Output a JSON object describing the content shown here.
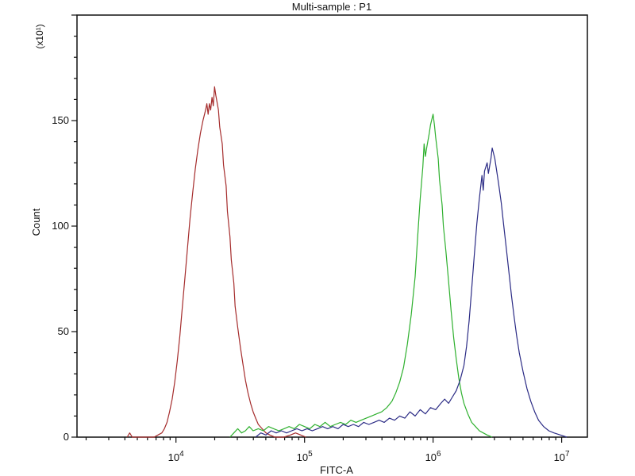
{
  "chart_data": {
    "type": "line",
    "subtype": "flow-cytometry-histogram-overlay",
    "title": "Multi-sample : P1",
    "xlabel": "FITC-A",
    "ylabel": "Count",
    "y_unit_multiplier": "(x10¹)",
    "grid": false,
    "legend": "none",
    "x_axis": {
      "scale": "log10",
      "log_min": 3.23,
      "log_max": 7.2,
      "major_exponents": [
        4,
        5,
        6,
        7
      ]
    },
    "y_axis": {
      "min": 0,
      "max": 200,
      "major_step": 50,
      "minor_step": 10,
      "major_labels": [
        "0",
        "50",
        "100",
        "150"
      ]
    },
    "series": [
      {
        "name": "red",
        "color": "#a52c2c",
        "peak_x_log10": 4.3,
        "peak_count": 166,
        "points": [
          [
            3.62,
            0
          ],
          [
            3.64,
            2
          ],
          [
            3.66,
            0
          ],
          [
            3.78,
            0
          ],
          [
            3.83,
            0
          ],
          [
            3.86,
            1
          ],
          [
            3.89,
            2
          ],
          [
            3.91,
            4
          ],
          [
            3.93,
            7
          ],
          [
            3.95,
            12
          ],
          [
            3.97,
            18
          ],
          [
            3.99,
            26
          ],
          [
            4.01,
            36
          ],
          [
            4.03,
            48
          ],
          [
            4.05,
            62
          ],
          [
            4.07,
            76
          ],
          [
            4.09,
            90
          ],
          [
            4.11,
            104
          ],
          [
            4.13,
            116
          ],
          [
            4.15,
            127
          ],
          [
            4.17,
            136
          ],
          [
            4.19,
            144
          ],
          [
            4.21,
            150
          ],
          [
            4.23,
            155
          ],
          [
            4.24,
            158
          ],
          [
            4.25,
            153
          ],
          [
            4.26,
            158
          ],
          [
            4.27,
            155
          ],
          [
            4.28,
            161
          ],
          [
            4.29,
            157
          ],
          [
            4.3,
            166
          ],
          [
            4.31,
            162
          ],
          [
            4.33,
            155
          ],
          [
            4.34,
            147
          ],
          [
            4.36,
            139
          ],
          [
            4.37,
            129
          ],
          [
            4.39,
            119
          ],
          [
            4.4,
            107
          ],
          [
            4.42,
            95
          ],
          [
            4.43,
            84
          ],
          [
            4.45,
            73
          ],
          [
            4.46,
            62
          ],
          [
            4.48,
            52
          ],
          [
            4.5,
            43
          ],
          [
            4.52,
            35
          ],
          [
            4.54,
            27
          ],
          [
            4.56,
            21
          ],
          [
            4.58,
            16
          ],
          [
            4.6,
            12
          ],
          [
            4.62,
            9
          ],
          [
            4.64,
            6
          ],
          [
            4.67,
            4
          ],
          [
            4.7,
            2
          ],
          [
            4.73,
            1
          ],
          [
            4.77,
            0
          ],
          [
            4.84,
            0
          ],
          [
            4.89,
            1
          ],
          [
            4.93,
            2
          ],
          [
            4.97,
            1
          ],
          [
            5.01,
            0
          ]
        ]
      },
      {
        "name": "green",
        "color": "#2eb02e",
        "peak_x_log10": 6.0,
        "peak_count": 153,
        "points": [
          [
            4.42,
            0
          ],
          [
            4.45,
            2
          ],
          [
            4.48,
            4
          ],
          [
            4.51,
            2
          ],
          [
            4.54,
            3
          ],
          [
            4.57,
            5
          ],
          [
            4.6,
            3
          ],
          [
            4.64,
            4
          ],
          [
            4.68,
            3
          ],
          [
            4.72,
            5
          ],
          [
            4.76,
            4
          ],
          [
            4.8,
            3
          ],
          [
            4.84,
            4
          ],
          [
            4.88,
            5
          ],
          [
            4.92,
            4
          ],
          [
            4.96,
            6
          ],
          [
            5.0,
            5
          ],
          [
            5.04,
            4
          ],
          [
            5.08,
            6
          ],
          [
            5.12,
            5
          ],
          [
            5.16,
            7
          ],
          [
            5.2,
            5
          ],
          [
            5.24,
            6
          ],
          [
            5.28,
            7
          ],
          [
            5.32,
            6
          ],
          [
            5.36,
            8
          ],
          [
            5.4,
            7
          ],
          [
            5.44,
            8
          ],
          [
            5.48,
            9
          ],
          [
            5.52,
            10
          ],
          [
            5.56,
            11
          ],
          [
            5.6,
            12
          ],
          [
            5.64,
            14
          ],
          [
            5.68,
            17
          ],
          [
            5.71,
            21
          ],
          [
            5.74,
            26
          ],
          [
            5.77,
            33
          ],
          [
            5.8,
            44
          ],
          [
            5.83,
            58
          ],
          [
            5.86,
            76
          ],
          [
            5.88,
            95
          ],
          [
            5.9,
            113
          ],
          [
            5.92,
            128
          ],
          [
            5.93,
            139
          ],
          [
            5.94,
            133
          ],
          [
            5.95,
            137
          ],
          [
            5.97,
            144
          ],
          [
            5.98,
            148
          ],
          [
            6.0,
            153
          ],
          [
            6.01,
            148
          ],
          [
            6.02,
            142
          ],
          [
            6.04,
            132
          ],
          [
            6.05,
            122
          ],
          [
            6.07,
            110
          ],
          [
            6.08,
            100
          ],
          [
            6.1,
            88
          ],
          [
            6.12,
            74
          ],
          [
            6.14,
            60
          ],
          [
            6.16,
            47
          ],
          [
            6.18,
            37
          ],
          [
            6.2,
            28
          ],
          [
            6.22,
            21
          ],
          [
            6.24,
            16
          ],
          [
            6.27,
            11
          ],
          [
            6.3,
            7
          ],
          [
            6.33,
            5
          ],
          [
            6.36,
            3
          ],
          [
            6.39,
            2
          ],
          [
            6.42,
            1
          ],
          [
            6.46,
            0
          ]
        ]
      },
      {
        "name": "blue",
        "color": "#2b2b85",
        "peak_x_log10": 6.46,
        "peak_count": 137,
        "points": [
          [
            4.62,
            0
          ],
          [
            4.66,
            2
          ],
          [
            4.7,
            1
          ],
          [
            4.74,
            3
          ],
          [
            4.78,
            2
          ],
          [
            4.82,
            3
          ],
          [
            4.86,
            2
          ],
          [
            4.9,
            3
          ],
          [
            4.94,
            4
          ],
          [
            4.98,
            3
          ],
          [
            5.02,
            4
          ],
          [
            5.06,
            3
          ],
          [
            5.1,
            4
          ],
          [
            5.14,
            5
          ],
          [
            5.18,
            4
          ],
          [
            5.22,
            5
          ],
          [
            5.26,
            4
          ],
          [
            5.3,
            6
          ],
          [
            5.34,
            5
          ],
          [
            5.38,
            6
          ],
          [
            5.42,
            5
          ],
          [
            5.46,
            7
          ],
          [
            5.5,
            6
          ],
          [
            5.54,
            7
          ],
          [
            5.58,
            8
          ],
          [
            5.62,
            7
          ],
          [
            5.66,
            9
          ],
          [
            5.7,
            8
          ],
          [
            5.74,
            10
          ],
          [
            5.78,
            9
          ],
          [
            5.82,
            12
          ],
          [
            5.86,
            10
          ],
          [
            5.9,
            13
          ],
          [
            5.94,
            11
          ],
          [
            5.98,
            14
          ],
          [
            6.02,
            13
          ],
          [
            6.06,
            16
          ],
          [
            6.09,
            18
          ],
          [
            6.12,
            16
          ],
          [
            6.15,
            19
          ],
          [
            6.18,
            22
          ],
          [
            6.21,
            27
          ],
          [
            6.24,
            34
          ],
          [
            6.26,
            43
          ],
          [
            6.28,
            55
          ],
          [
            6.3,
            70
          ],
          [
            6.32,
            86
          ],
          [
            6.34,
            101
          ],
          [
            6.36,
            113
          ],
          [
            6.38,
            124
          ],
          [
            6.39,
            117
          ],
          [
            6.4,
            126
          ],
          [
            6.42,
            130
          ],
          [
            6.43,
            125
          ],
          [
            6.45,
            132
          ],
          [
            6.46,
            137
          ],
          [
            6.48,
            132
          ],
          [
            6.49,
            128
          ],
          [
            6.51,
            120
          ],
          [
            6.53,
            111
          ],
          [
            6.55,
            100
          ],
          [
            6.57,
            89
          ],
          [
            6.59,
            78
          ],
          [
            6.61,
            67
          ],
          [
            6.63,
            57
          ],
          [
            6.65,
            48
          ],
          [
            6.67,
            40
          ],
          [
            6.7,
            31
          ],
          [
            6.73,
            23
          ],
          [
            6.76,
            17
          ],
          [
            6.79,
            12
          ],
          [
            6.82,
            8
          ],
          [
            6.86,
            5
          ],
          [
            6.9,
            3
          ],
          [
            6.94,
            2
          ],
          [
            6.99,
            1
          ],
          [
            7.04,
            0
          ]
        ]
      }
    ]
  }
}
